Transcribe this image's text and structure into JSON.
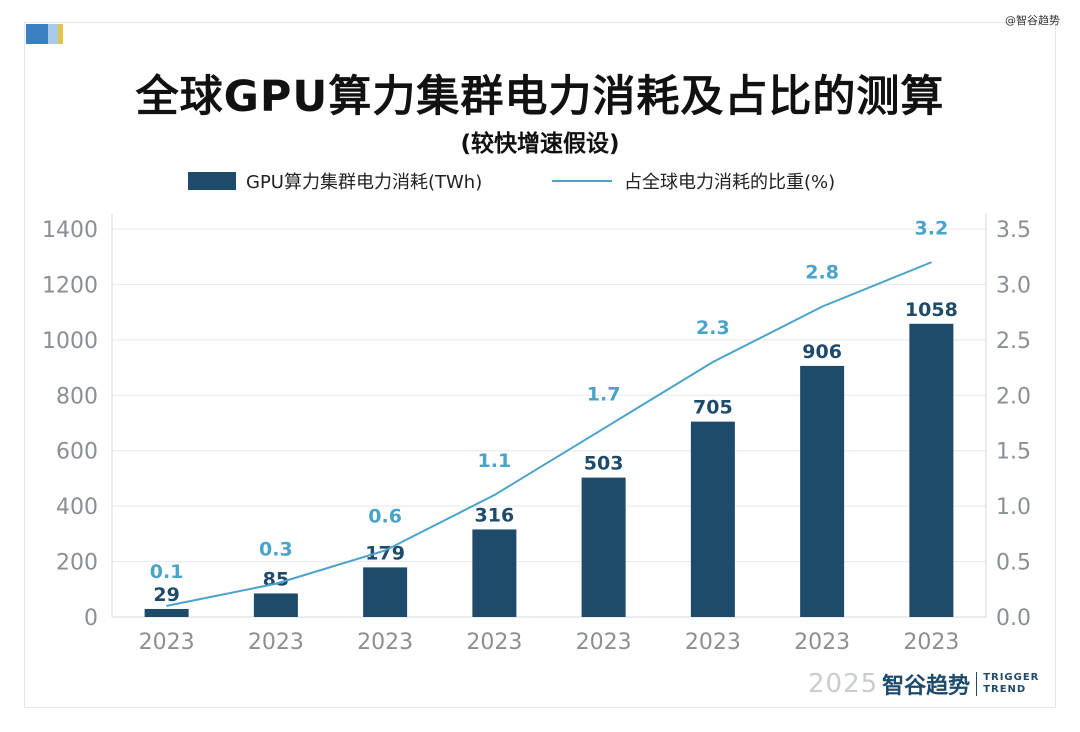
{
  "watermark": "@智谷趋势",
  "colors": {
    "bar": "#1e4a6b",
    "line": "#4aa3c9",
    "axis_text": "#8a8f96",
    "stripe1": "#3a7fc1",
    "stripe2": "#a9c9e8",
    "stripe3": "#e3c44b"
  },
  "brand": {
    "year": "2025",
    "name": "智谷趋势",
    "en_line1": "TRIGGER",
    "en_line2": "TREND"
  },
  "chart_data": {
    "type": "bar",
    "title": "全球GPU算力集群电力消耗及占比的测算",
    "subtitle": "(较快增速假设)",
    "categories": [
      "2023",
      "2023",
      "2023",
      "2023",
      "2023",
      "2023",
      "2023",
      "2023"
    ],
    "series": [
      {
        "name": "GPU算力集群电力消耗(TWh)",
        "type": "bar",
        "axis": "left",
        "values": [
          29,
          85,
          179,
          316,
          503,
          705,
          906,
          1058
        ]
      },
      {
        "name": "占全球电力消耗的比重(%)",
        "type": "line",
        "axis": "right",
        "values": [
          0.1,
          0.3,
          0.6,
          1.1,
          1.7,
          2.3,
          2.8,
          3.2
        ]
      }
    ],
    "y_left": {
      "ylim": [
        0,
        1400
      ],
      "ticks": [
        "0",
        "200",
        "400",
        "600",
        "800",
        "1000",
        "1200",
        "1400"
      ]
    },
    "y_right": {
      "ylim": [
        0,
        3.5
      ],
      "ticks": [
        "0.0",
        "0.5",
        "1.0",
        "1.5",
        "2.0",
        "2.5",
        "3.0",
        "3.5"
      ]
    },
    "grid": true,
    "legend_position": "top"
  }
}
